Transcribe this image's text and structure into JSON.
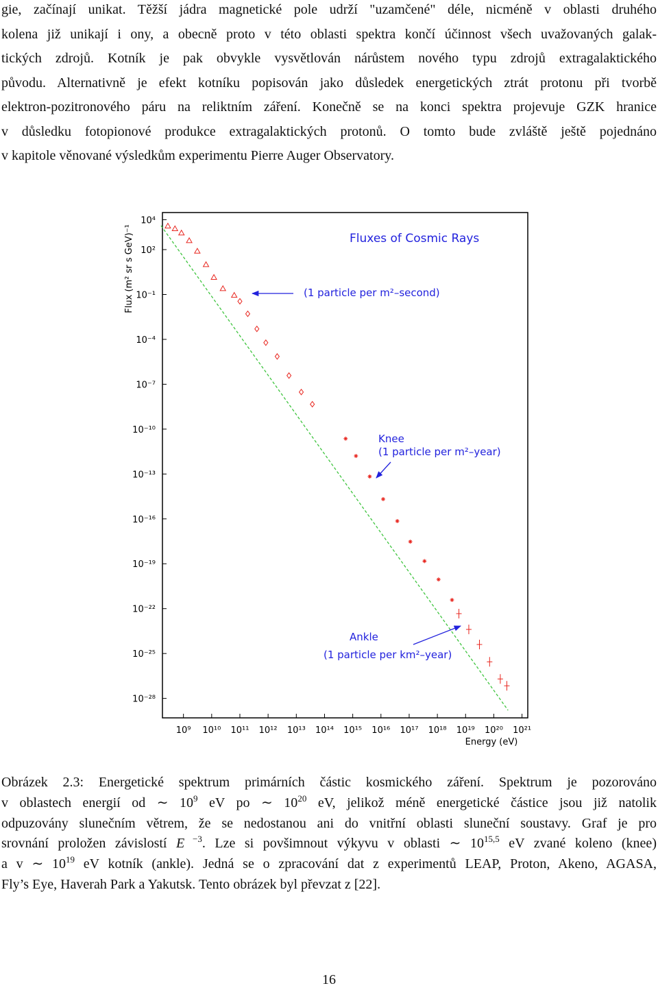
{
  "paragraph_lines": [
    "gie, začínají unikat. Těžší jádra magnetické pole udrží \"uzamčené\" déle, nicméně v oblasti druhého",
    "kolena již unikají i ony, a obecně proto v této oblasti spektra končí účinnost všech uvažovaných galak-",
    "tických zdrojů. Kotník je pak obvykle vysvětlován nárůstem nového typu zdrojů extragalaktického",
    "původu. Alternativně je efekt kotníku popisován jako důsledek energetických ztrát protonu při tvorbě",
    "elektron-pozitronového páru na reliktním záření. Konečně se na konci spektra projevuje GZK hranice",
    "v důsledku fotopionové produkce extragalaktických protonů. O tomto bude zvláště ještě pojednáno",
    "v kapitole věnované výsledkům experimentu Pierre Auger Observatory."
  ],
  "chart_data": {
    "type": "scatter",
    "title": "Fluxes of Cosmic Rays",
    "xlabel": "Energy (eV)",
    "ylabel": "Flux (m² sr s GeV)⁻¹",
    "annotations": [
      "(1 particle per m²–second)",
      "Knee",
      "(1 particle per m²–year)",
      "Ankle",
      "(1 particle per km²–year)"
    ],
    "log_scale": true,
    "xlim": [
      180000000.0,
      1.6e+21
    ],
    "ylim": [
      5e-30,
      30000.0
    ],
    "xticks": [
      {
        "value": 1000000000.0,
        "label": "10⁹"
      },
      {
        "value": 10000000000.0,
        "label": "10¹⁰"
      },
      {
        "value": 100000000000.0,
        "label": "10¹¹"
      },
      {
        "value": 1000000000000.0,
        "label": "10¹²"
      },
      {
        "value": 10000000000000.0,
        "label": "10¹³"
      },
      {
        "value": 100000000000000.0,
        "label": "10¹⁴"
      },
      {
        "value": 1000000000000000.0,
        "label": "10¹⁵"
      },
      {
        "value": 1e+16,
        "label": "10¹⁶"
      },
      {
        "value": 1e+17,
        "label": "10¹⁷"
      },
      {
        "value": 1e+18,
        "label": "10¹⁸"
      },
      {
        "value": 1e+19,
        "label": "10¹⁹"
      },
      {
        "value": 1e+20,
        "label": "10²⁰"
      },
      {
        "value": 1e+21,
        "label": "10²¹"
      }
    ],
    "yticks": [
      {
        "value": 10000.0,
        "label": "10⁴"
      },
      {
        "value": 100,
        "label": "10²"
      },
      {
        "value": 0.1,
        "label": "10⁻¹"
      },
      {
        "value": 0.0001,
        "label": "10⁻⁴"
      },
      {
        "value": 1e-07,
        "label": "10⁻⁷"
      },
      {
        "value": 1e-10,
        "label": "10⁻¹⁰"
      },
      {
        "value": 1e-13,
        "label": "10⁻¹³"
      },
      {
        "value": 1e-16,
        "label": "10⁻¹⁶"
      },
      {
        "value": 1e-19,
        "label": "10⁻¹⁹"
      },
      {
        "value": 1e-22,
        "label": "10⁻²²"
      },
      {
        "value": 1e-25,
        "label": "10⁻²⁵"
      },
      {
        "value": 1e-28,
        "label": "10⁻²⁸"
      }
    ],
    "series": [
      {
        "marker": "line",
        "color": "#3ec43e",
        "x": [
          160000000.0,
          3.2e+20
        ],
        "values": [
          4000,
          1.6e-29
        ]
      },
      {
        "marker": "triangle",
        "color": "#e8261f",
        "x": [
          280000000.0,
          500000000.0,
          850000000.0,
          1600000000.0,
          3100000000.0,
          6300000000.0,
          12000000000.0,
          25000000000.0,
          63000000000.0
        ],
        "values": [
          3800,
          2500,
          1300,
          400,
          79,
          10,
          1.4,
          0.25,
          0.089
        ]
      },
      {
        "marker": "diamond",
        "color": "#e8261f",
        "x": [
          100000000000.0,
          190000000000.0,
          400000000000.0,
          830000000000.0,
          2100000000000.0,
          5500000000000.0,
          15000000000000.0,
          37000000000000.0
        ],
        "values": [
          0.035,
          0.0051,
          0.0005,
          6e-05,
          7.2e-06,
          3.8e-07,
          3e-08,
          4.6e-09
        ]
      },
      {
        "marker": "star",
        "color": "#e8261f",
        "x": [
          560000000000000.0,
          1300000000000000.0,
          4000000000000000.0,
          1.2e+16,
          3.8e+16,
          1.1e+17,
          3.5e+17,
          1.1e+18,
          3.3e+18
        ],
        "values": [
          2.3e-11,
          1.6e-12,
          6.8e-14,
          2.1e-15,
          7.1e-17,
          3e-18,
          1.5e-19,
          8.9e-21,
          3.8e-22
        ]
      },
      {
        "marker": "cross",
        "color": "#e8261f",
        "x": [
          5.8e+18,
          1.3e+19,
          3.1e+19,
          7.1e+19,
          1.7e+20,
          2.9e+20
        ],
        "values": [
          4.6e-23,
          4.1e-24,
          4e-25,
          2.8e-26,
          2e-27,
          6.9e-28
        ]
      }
    ]
  },
  "caption_lines": [
    [
      "Obrázek 2.3: Energetické spektrum primárních částic kosmického záření. Spektrum je pozorováno"
    ],
    [
      "v oblastech energií od ∼ 10",
      {
        "sup": "9"
      },
      " eV po ∼ 10",
      {
        "sup": "20"
      },
      " eV, jelikož méně energetické částice jsou již natolik"
    ],
    [
      "odpuzovány slunečním větrem, že se nedostanou ani do vnitřní oblasti sluneční soustavy. Graf je pro"
    ],
    [
      "srovnání proložen závislostí ",
      {
        "em": "E"
      },
      {
        "sup": " −3"
      },
      ". Lze si povšimnout výkyvu v oblasti ∼ 10",
      {
        "sup": "15,5"
      },
      " eV zvané koleno (knee)"
    ],
    [
      "a v ∼ 10",
      {
        "sup": "19"
      },
      " eV kotník (ankle). Jedná se o zpracování dat z experimentů LEAP, Proton, Akeno, AGASA,"
    ],
    [
      "Fly’s Eye, Haverah Park a Yakutsk. Tento obrázek byl převzat z [22]."
    ]
  ],
  "page_number": "16"
}
